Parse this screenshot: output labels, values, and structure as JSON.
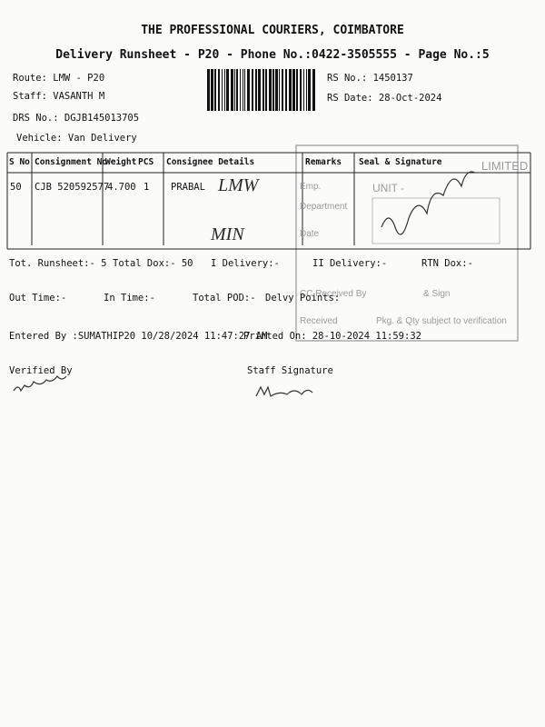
{
  "header": {
    "title": "THE PROFESSIONAL COURIERS, COIMBATORE",
    "subtitle": "Delivery Runsheet - P20 - Phone No.:0422-3505555 - Page No.:5"
  },
  "info": {
    "route": "Route: LMW - P20",
    "staff": "Staff: VASANTH M",
    "drs": "DRS No.: DGJB145013705",
    "vehicle": "Vehicle: Van Delivery",
    "rs_no": "RS No.: 1450137",
    "rs_date": "RS Date: 28-Oct-2024"
  },
  "table": {
    "columns": [
      "S No",
      "Consignment No",
      "Weight",
      "PCS",
      "Consignee Details",
      "Remarks",
      "Seal & Signature"
    ],
    "rows": [
      [
        "50",
        "CJB 520592577",
        "4.700",
        "1",
        "PRABAL"
      ]
    ]
  },
  "handwriting": {
    "remark_1": "LMW",
    "remark_2": "MIN"
  },
  "stamp": {
    "top": "LIMITED",
    "unit": "UNIT -",
    "emp": "Emp.",
    "department": "Department",
    "date": "Date",
    "received_by": "CC Received By",
    "sign": "& Sign",
    "received": "Received",
    "note": "Pkg. & Qty subject to verification"
  },
  "totals": {
    "tot_runsheet": "Tot. Runsheet:- 5",
    "total_dox": "Total Dox:- 50",
    "i_delivery": "I Delivery:-",
    "ii_delivery": "II Delivery:-",
    "rtn_dox": "RTN Dox:-",
    "out_time": "Out Time:-",
    "in_time": "In Time:-",
    "total_pod": "Total POD:-",
    "delvy_points": "Delvy Points:"
  },
  "footer": {
    "entered_by": "Entered By :SUMATHIP20 10/28/2024 11:47:27 AM",
    "printed_on": "Printed On: 28-10-2024 11:59:32",
    "verified_by": "Verified By",
    "staff_signature": "Staff Signature"
  }
}
